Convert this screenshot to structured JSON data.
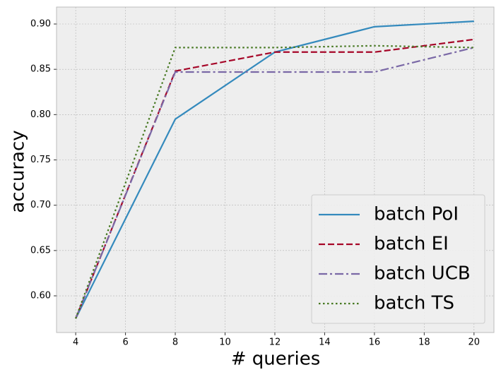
{
  "chart_data": {
    "type": "line",
    "x_label": "# queries",
    "y_label": "accuracy",
    "x": [
      4,
      8,
      12,
      16,
      20
    ],
    "series": [
      {
        "name": "batch PoI",
        "color": "#348ABD",
        "linestyle": "solid",
        "values": [
          0.575,
          0.795,
          0.869,
          0.897,
          0.903
        ]
      },
      {
        "name": "batch EI",
        "color": "#A60628",
        "linestyle": "dashed",
        "values": [
          0.575,
          0.848,
          0.869,
          0.869,
          0.883
        ]
      },
      {
        "name": "batch UCB",
        "color": "#7A68A6",
        "linestyle": "dashdot",
        "values": [
          0.575,
          0.847,
          0.847,
          0.847,
          0.874
        ]
      },
      {
        "name": "batch TS",
        "color": "#467821",
        "linestyle": "dotted",
        "values": [
          0.575,
          0.874,
          0.874,
          0.876,
          0.874
        ]
      }
    ],
    "xlim": [
      3.23,
      20.8
    ],
    "ylim": [
      0.5595,
      0.9187
    ],
    "xticks": [
      4,
      6,
      8,
      10,
      12,
      14,
      16,
      18,
      20
    ],
    "yticks": [
      {
        "value": 0.6,
        "label": "0.60"
      },
      {
        "value": 0.65,
        "label": "0.65"
      },
      {
        "value": 0.7,
        "label": "0.70"
      },
      {
        "value": 0.75,
        "label": "0.75"
      },
      {
        "value": 0.8,
        "label": "0.80"
      },
      {
        "value": 0.85,
        "label": "0.85"
      },
      {
        "value": 0.9,
        "label": "0.90"
      }
    ],
    "grid": true,
    "legend": "lower right"
  }
}
